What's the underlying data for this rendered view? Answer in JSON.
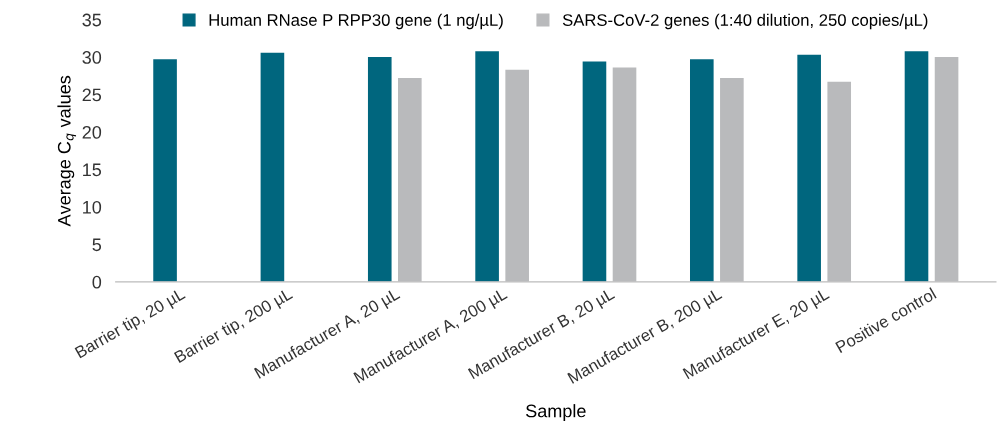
{
  "chart_data": {
    "type": "bar",
    "xlabel": "Sample",
    "ylabel": "Average C$_{q}$ values",
    "categories": [
      "Barrier tip, 20 µL",
      "Barrier tip, 200 µL",
      "Manufacturer A, 20 µL",
      "Manufacturer A, 200 µL",
      "Manufacturer B, 20 µL",
      "Manufacturer B, 200 µL",
      "Manufacturer E, 20 µL",
      "Positive control"
    ],
    "series": [
      {
        "name": "Human RNase P RPP30 gene (1 ng/µL)",
        "color": "#00667e",
        "values": [
          29.7,
          30.6,
          30.0,
          30.8,
          29.4,
          29.7,
          30.3,
          30.8
        ]
      },
      {
        "name": "SARS-CoV-2 genes (1:40 dilution, 250 copies/µL)",
        "color": "#b9babc",
        "values": [
          null,
          null,
          27.2,
          28.3,
          28.6,
          27.2,
          26.7,
          30.0
        ]
      }
    ],
    "ylim": [
      0,
      35
    ],
    "yticks": [
      0,
      5,
      10,
      15,
      20,
      25,
      30,
      35
    ],
    "grid": false,
    "legend": "top"
  }
}
